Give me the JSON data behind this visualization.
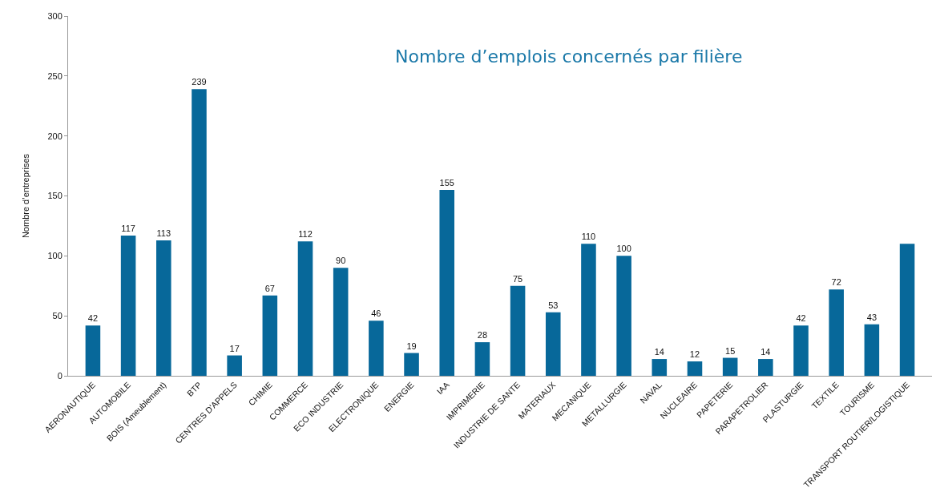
{
  "chart_data": {
    "type": "bar",
    "title": "Nombre d’emplois concernés par filière",
    "ylabel": "Nombre d’entreprises",
    "categories": [
      "AERONAUTIQUE",
      "AUTOMOBILE",
      "BOIS (Ameublement)",
      "BTP",
      "CENTRES D'APPELS",
      "CHIMIE",
      "COMMERCE",
      "ECO INDUSTRIE",
      "ELECTRONIQUE",
      "ENERGIE",
      "IAA",
      "IMPRIMERIE",
      "INDUSTRIE DE SANTE",
      "MATERIAUX",
      "MECANIQUE",
      "METALLURGIE",
      "NAVAL",
      "NUCLEAIRE",
      "PAPETERIE",
      "PARAPETROLIER",
      "PLASTURGIE",
      "TEXTILE",
      "TOURISME",
      "TRANSPORT ROUTIER/LOGISTIQUE"
    ],
    "values": [
      42,
      117,
      113,
      239,
      17,
      67,
      112,
      90,
      46,
      19,
      155,
      28,
      75,
      53,
      110,
      100,
      14,
      12,
      15,
      14,
      42,
      72,
      43,
      110
    ],
    "value_labels": [
      "42",
      "117",
      "113",
      "239",
      "17",
      "67",
      "112",
      "90",
      "46",
      "19",
      "155",
      "28",
      "75",
      "53",
      "110",
      "100",
      "14",
      "12",
      "15",
      "14",
      "42",
      "72",
      "43",
      null
    ],
    "color": "#07689a",
    "ylim": [
      0,
      300
    ],
    "yticks": [
      0,
      50,
      100,
      150,
      200,
      250,
      300
    ],
    "grid": false,
    "legend": false
  }
}
